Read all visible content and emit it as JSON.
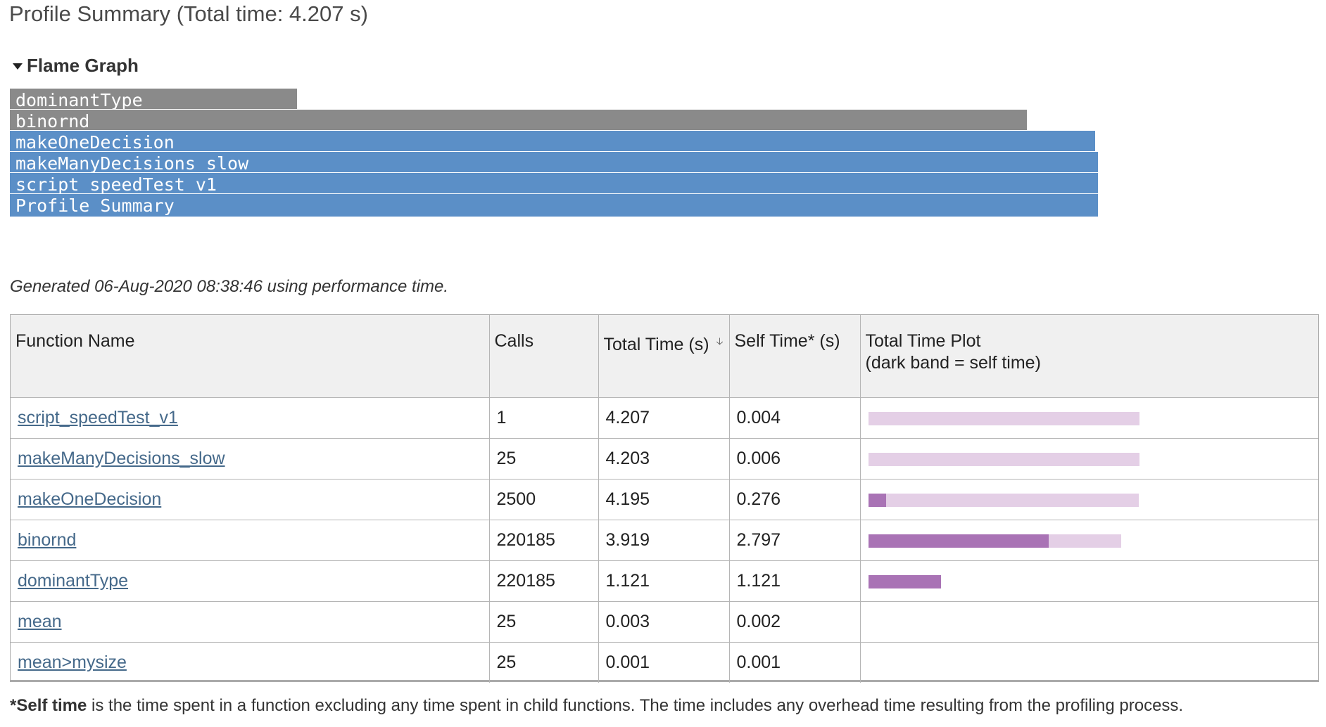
{
  "title": "Profile Summary (Total time: 4.207 s)",
  "flame_section": {
    "label": "Flame Graph",
    "frames": [
      {
        "name": "dominantType",
        "color": "#8a8a8a",
        "width_fraction": 0.265
      },
      {
        "name": "binornd",
        "color": "#8a8a8a",
        "width_fraction": 0.935
      },
      {
        "name": "makeOneDecision",
        "color": "#5b8fc7",
        "width_fraction": 0.998
      },
      {
        "name": "makeManyDecisions_slow",
        "color": "#5b8fc7",
        "width_fraction": 1.0
      },
      {
        "name": "script_speedTest_v1",
        "color": "#5b8fc7",
        "width_fraction": 1.0
      },
      {
        "name": "Profile Summary",
        "color": "#5b8fc7",
        "width_fraction": 1.0
      }
    ]
  },
  "generated": "Generated 06-Aug-2020 08:38:46 using performance time.",
  "table": {
    "headers": {
      "function_name": "Function Name",
      "calls": "Calls",
      "total_time": "Total Time (s)",
      "self_time": "Self Time* (s)",
      "plot_line1": "Total Time Plot",
      "plot_line2": "(dark band = self time)"
    },
    "sort_icon": "sort-descending-arrow-icon",
    "plot_max_time": 4.207,
    "rows": [
      {
        "name": "script_speedTest_v1",
        "calls": "1",
        "total": "4.207",
        "self": "0.004",
        "total_value": 4.207,
        "self_value": 0.004
      },
      {
        "name": "makeManyDecisions_slow",
        "calls": "25",
        "total": "4.203",
        "self": "0.006",
        "total_value": 4.203,
        "self_value": 0.006
      },
      {
        "name": "makeOneDecision",
        "calls": "2500",
        "total": "4.195",
        "self": "0.276",
        "total_value": 4.195,
        "self_value": 0.276
      },
      {
        "name": "binornd",
        "calls": "220185",
        "total": "3.919",
        "self": "2.797",
        "total_value": 3.919,
        "self_value": 2.797
      },
      {
        "name": "dominantType",
        "calls": "220185",
        "total": "1.121",
        "self": "1.121",
        "total_value": 1.121,
        "self_value": 1.121
      },
      {
        "name": "mean",
        "calls": "25",
        "total": "0.003",
        "self": "0.002",
        "total_value": 0.003,
        "self_value": 0.002
      },
      {
        "name": "mean>mysize",
        "calls": "25",
        "total": "0.001",
        "self": "0.001",
        "total_value": 0.001,
        "self_value": 0.001
      }
    ]
  },
  "footnote": {
    "bold": "*Self time",
    "rest": " is the time spent in a function excluding any time spent in child functions. The time includes any overhead time resulting from the profiling process."
  },
  "colors": {
    "bar_total": "#e4cfe6",
    "bar_self": "#a973b5",
    "link": "#45698a"
  }
}
